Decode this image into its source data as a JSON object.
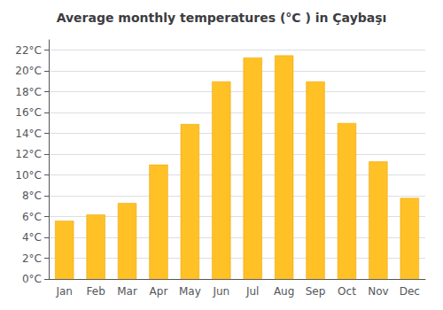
{
  "chart_data": {
    "type": "bar",
    "title": "Average monthly temperatures (°C ) in Çaybaşı",
    "categories": [
      "Jan",
      "Feb",
      "Mar",
      "Apr",
      "May",
      "Jun",
      "Jul",
      "Aug",
      "Sep",
      "Oct",
      "Nov",
      "Dec"
    ],
    "values": [
      5.6,
      6.2,
      7.3,
      11.0,
      14.9,
      19.0,
      21.3,
      21.5,
      19.0,
      15.0,
      11.3,
      7.8
    ],
    "color": "#FFC125",
    "ylim": [
      0,
      23
    ],
    "yticks": [
      {
        "value": 0,
        "label": "0°C"
      },
      {
        "value": 2,
        "label": "2°C"
      },
      {
        "value": 4,
        "label": "4°C"
      },
      {
        "value": 6,
        "label": "6°C"
      },
      {
        "value": 8,
        "label": "8°C"
      },
      {
        "value": 10,
        "label": "10°C"
      },
      {
        "value": 12,
        "label": "12°C"
      },
      {
        "value": 14,
        "label": "14°C"
      },
      {
        "value": 16,
        "label": "16°C"
      },
      {
        "value": 18,
        "label": "18°C"
      },
      {
        "value": 20,
        "label": "20°C"
      },
      {
        "value": 22,
        "label": "22°C"
      }
    ],
    "grid": true
  }
}
